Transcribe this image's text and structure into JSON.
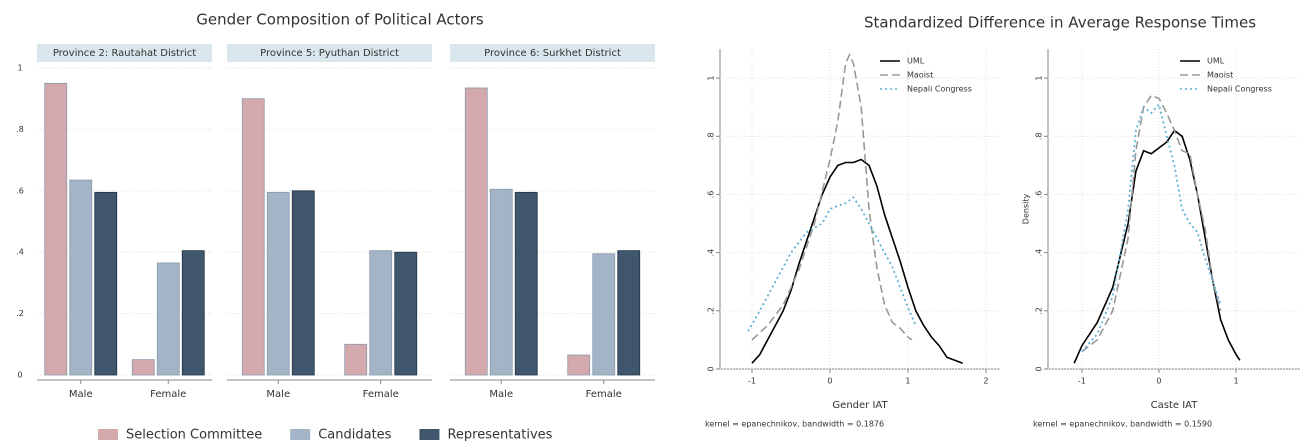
{
  "chart_data": [
    {
      "type": "bar",
      "title": "Gender Composition of Political Actors",
      "categories": [
        "Male",
        "Female"
      ],
      "series": [
        {
          "name": "Selection Committee",
          "color": "#d4a9ad"
        },
        {
          "name": "Candidates",
          "color": "#a3b4c6"
        },
        {
          "name": "Representatives",
          "color": "#3f566d"
        }
      ],
      "ylim": [
        0,
        1
      ],
      "yticks": [
        0,
        {
          "value": 0.2,
          "label": ".2"
        },
        {
          "value": 0.4,
          "label": ".4"
        },
        {
          "value": 0.6,
          "label": ".6"
        },
        {
          "value": 0.8,
          "label": ".8"
        },
        1
      ],
      "grid": true,
      "panels": [
        {
          "title": "Province 2: Rautahat District",
          "values": [
            [
              0.95,
              0.05
            ],
            [
              0.635,
              0.365
            ],
            [
              0.595,
              0.405
            ]
          ]
        },
        {
          "title": "Province 5: Pyuthan District",
          "values": [
            [
              0.9,
              0.1
            ],
            [
              0.595,
              0.405
            ],
            [
              0.6,
              0.4
            ]
          ]
        },
        {
          "title": "Province 6: Surkhet District",
          "values": [
            [
              0.935,
              0.065
            ],
            [
              0.605,
              0.395
            ],
            [
              0.595,
              0.405
            ]
          ]
        }
      ]
    },
    {
      "type": "line",
      "title": "Standardized Difference in Average Response Times",
      "grid": true,
      "panels": [
        {
          "xlabel": "Gender IAT",
          "note": "kernel = epanechnikov, bandwidth = 0.1876",
          "xlim": [
            -1.41,
            2.18
          ],
          "xticks": [
            -1,
            0,
            1,
            2
          ],
          "ylim": [
            0,
            1.1
          ],
          "yticks": [
            0,
            {
              "value": 0.2,
              "label": ".2"
            },
            {
              "value": 0.4,
              "label": ".4"
            },
            {
              "value": 0.6,
              "label": ".6"
            },
            {
              "value": 0.8,
              "label": ".8"
            },
            1
          ],
          "series": [
            {
              "name": "UML",
              "color": "#000000",
              "dash": "none",
              "x": [
                -1.0,
                -0.9,
                -0.8,
                -0.7,
                -0.6,
                -0.5,
                -0.4,
                -0.3,
                -0.2,
                -0.1,
                0,
                0.1,
                0.2,
                0.3,
                0.4,
                0.5,
                0.6,
                0.7,
                0.8,
                0.9,
                1.0,
                1.1,
                1.2,
                1.3,
                1.4,
                1.5,
                1.6,
                1.7
              ],
              "values": [
                0.02,
                0.05,
                0.1,
                0.15,
                0.2,
                0.27,
                0.36,
                0.44,
                0.52,
                0.6,
                0.66,
                0.7,
                0.71,
                0.71,
                0.72,
                0.7,
                0.63,
                0.53,
                0.45,
                0.37,
                0.28,
                0.2,
                0.15,
                0.11,
                0.08,
                0.04,
                0.03,
                0.02
              ]
            },
            {
              "name": "Maoist",
              "color": "#999999",
              "dash": "8 4",
              "x": [
                -1,
                -0.8,
                -0.6,
                -0.4,
                -0.2,
                0,
                0.1,
                0.2,
                0.25,
                0.3,
                0.4,
                0.5,
                0.6,
                0.7,
                0.8,
                0.9,
                1.0,
                1.05
              ],
              "values": [
                0.1,
                0.15,
                0.22,
                0.34,
                0.5,
                0.72,
                0.85,
                1.05,
                1.08,
                1.05,
                0.9,
                0.55,
                0.35,
                0.22,
                0.16,
                0.14,
                0.11,
                0.1
              ]
            },
            {
              "name": "Nepali Congress",
              "color": "#5fb0d8",
              "dash": "2 3",
              "x": [
                -1.05,
                -0.9,
                -0.7,
                -0.5,
                -0.3,
                -0.1,
                0,
                0.2,
                0.3,
                0.4,
                0.5,
                0.6,
                0.8,
                1.0,
                1.1
              ],
              "values": [
                0.13,
                0.2,
                0.3,
                0.4,
                0.47,
                0.5,
                0.55,
                0.57,
                0.59,
                0.55,
                0.5,
                0.45,
                0.35,
                0.21,
                0.15
              ]
            }
          ]
        },
        {
          "xlabel": "Caste IAT",
          "ylabel": "Density",
          "note": "kernel = epanechnikov, bandwidth = 0.1590",
          "xlim": [
            -1.44,
            1.83
          ],
          "xticks": [
            -1,
            0,
            1
          ],
          "ylim": [
            0,
            1.1
          ],
          "yticks": [
            0,
            {
              "value": 0.2,
              "label": ".2"
            },
            {
              "value": 0.4,
              "label": ".4"
            },
            {
              "value": 0.6,
              "label": ".6"
            },
            {
              "value": 0.8,
              "label": ".8"
            },
            1
          ],
          "series": [
            {
              "name": "UML",
              "color": "#000000",
              "dash": "none",
              "x": [
                -1.1,
                -1,
                -0.8,
                -0.6,
                -0.4,
                -0.3,
                -0.2,
                -0.1,
                0,
                0.1,
                0.2,
                0.3,
                0.4,
                0.5,
                0.6,
                0.7,
                0.8,
                0.9,
                1.0,
                1.05
              ],
              "values": [
                0.02,
                0.08,
                0.16,
                0.28,
                0.5,
                0.68,
                0.75,
                0.74,
                0.76,
                0.78,
                0.82,
                0.8,
                0.72,
                0.6,
                0.45,
                0.3,
                0.17,
                0.1,
                0.05,
                0.03
              ]
            },
            {
              "name": "Maoist",
              "color": "#999999",
              "dash": "8 4",
              "x": [
                -1,
                -0.8,
                -0.6,
                -0.4,
                -0.3,
                -0.2,
                -0.1,
                0,
                0.1,
                0.2,
                0.3,
                0.4,
                0.5,
                0.6,
                0.7,
                0.8
              ],
              "values": [
                0.06,
                0.1,
                0.2,
                0.45,
                0.75,
                0.9,
                0.94,
                0.93,
                0.88,
                0.82,
                0.75,
                0.74,
                0.6,
                0.48,
                0.3,
                0.2
              ]
            },
            {
              "name": "Nepali Congress",
              "color": "#5fb0d8",
              "dash": "2 3",
              "x": [
                -1,
                -0.8,
                -0.6,
                -0.4,
                -0.3,
                -0.2,
                -0.1,
                0,
                0.1,
                0.2,
                0.3,
                0.4,
                0.5,
                0.6,
                0.7,
                0.8
              ],
              "values": [
                0.06,
                0.12,
                0.25,
                0.55,
                0.82,
                0.9,
                0.88,
                0.91,
                0.8,
                0.7,
                0.55,
                0.5,
                0.47,
                0.38,
                0.3,
                0.22
              ]
            }
          ]
        }
      ]
    }
  ]
}
